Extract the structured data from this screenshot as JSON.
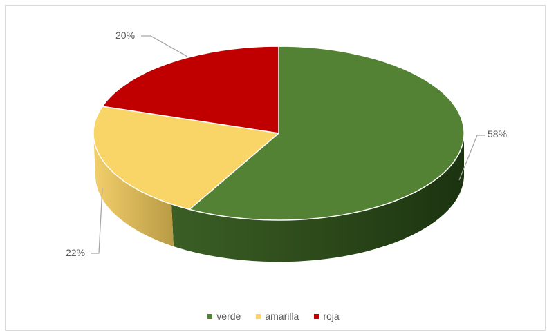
{
  "chart_data": {
    "type": "pie",
    "style": "3d",
    "title": "",
    "categories": [
      "verde",
      "amarilla",
      "roja"
    ],
    "values": [
      58,
      22,
      20
    ],
    "value_labels": [
      "58%",
      "22%",
      "20%"
    ],
    "colors": [
      "#548235",
      "#f9d466",
      "#c00000"
    ],
    "legend_position": "bottom"
  }
}
